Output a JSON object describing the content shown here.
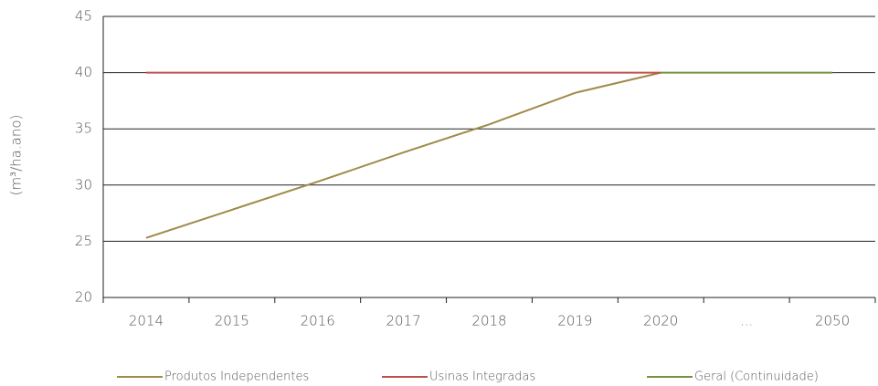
{
  "chart_data": {
    "type": "line",
    "y_label": "(m³/ha.ano)",
    "categories": [
      "2014",
      "2015",
      "2016",
      "2017",
      "2018",
      "2019",
      "2020",
      "...",
      "2050"
    ],
    "series": [
      {
        "name": "Produtos Independentes",
        "color": "#a08a48",
        "values": [
          25.3,
          27.8,
          30.3,
          32.9,
          35.4,
          38.2,
          40,
          null,
          null
        ]
      },
      {
        "name": "Usinas Integradas",
        "color": "#c0504d",
        "values": [
          40,
          40,
          40,
          40,
          40,
          40,
          40,
          null,
          null
        ]
      },
      {
        "name": "Geral (Continuidade)",
        "color": "#77933c",
        "values": [
          null,
          null,
          null,
          null,
          null,
          null,
          40,
          40,
          40
        ]
      }
    ],
    "ylim": [
      20,
      45
    ],
    "yticks": [
      20,
      25,
      30,
      35,
      40,
      45
    ],
    "grid": true
  }
}
